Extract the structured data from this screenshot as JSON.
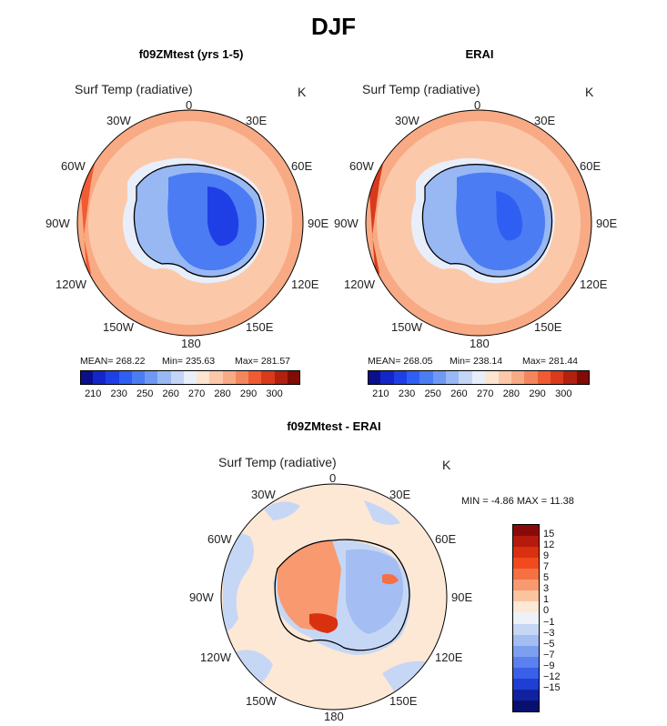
{
  "figure": {
    "title": "DJF"
  },
  "panels": [
    {
      "title": "f09ZMtest (yrs 1-5)",
      "variable": "Surf Temp (radiative)",
      "units": "K",
      "stats": {
        "mean": "MEAN= 268.22",
        "min": "Min= 235.63",
        "max": "Max= 281.57"
      }
    },
    {
      "title": "ERAI",
      "variable": "Surf Temp (radiative)",
      "units": "K",
      "stats": {
        "mean": "MEAN= 268.05",
        "min": "Min= 238.14",
        "max": "Max= 281.44"
      }
    },
    {
      "title": "f09ZMtest - ERAI",
      "variable": "Surf Temp (radiative)",
      "units": "K",
      "stats": {
        "minmax": "MIN =    -4.86 MAX =   11.38"
      }
    }
  ],
  "longitude_labels": [
    "0",
    "30E",
    "60E",
    "90E",
    "120E",
    "150E",
    "180",
    "150W",
    "120W",
    "90W",
    "60W",
    "30W"
  ],
  "colorbar_abs": {
    "ticks": [
      "210",
      "230",
      "250",
      "260",
      "270",
      "280",
      "290",
      "300"
    ],
    "colors": [
      "#0a0f8c",
      "#1426c8",
      "#1f3fe6",
      "#2f5ff2",
      "#4b7cf3",
      "#6f98f3",
      "#98b8f3",
      "#c3d6f6",
      "#e9eefb",
      "#fde4cf",
      "#fbc9a9",
      "#f8aa84",
      "#f4865d",
      "#ef5b33",
      "#d93a1c",
      "#b0210f",
      "#7f0c05"
    ]
  },
  "colorbar_diff": {
    "ticks": [
      "15",
      "12",
      "9",
      "7",
      "5",
      "3",
      "1",
      "0",
      "−1",
      "−3",
      "−5",
      "−7",
      "−9",
      "−12",
      "−15"
    ],
    "colors": [
      "#8a0a0a",
      "#b51a0d",
      "#d9300f",
      "#f04a1e",
      "#f57042",
      "#f8996f",
      "#fbc4a0",
      "#fde8d6",
      "#eef1f8",
      "#c6d7f5",
      "#a4bdf2",
      "#7d9ff0",
      "#5b80ef",
      "#3a5fe8",
      "#1f3ed4",
      "#10229f",
      "#080f6e"
    ]
  },
  "chart_data": [
    {
      "type": "heatmap",
      "projection": "south polar stereographic",
      "title": "f09ZMtest (yrs 1-5)",
      "variable": "Surf Temp (radiative)",
      "units": "K",
      "season": "DJF",
      "mean": 268.22,
      "min": 235.63,
      "max": 281.57,
      "contour_levels": [
        210,
        230,
        250,
        260,
        270,
        280,
        290,
        300
      ]
    },
    {
      "type": "heatmap",
      "projection": "south polar stereographic",
      "title": "ERAI",
      "variable": "Surf Temp (radiative)",
      "units": "K",
      "season": "DJF",
      "mean": 268.05,
      "min": 238.14,
      "max": 281.44,
      "contour_levels": [
        210,
        230,
        250,
        260,
        270,
        280,
        290,
        300
      ]
    },
    {
      "type": "heatmap",
      "projection": "south polar stereographic",
      "title": "f09ZMtest - ERAI",
      "variable": "Surf Temp (radiative)",
      "units": "K",
      "season": "DJF",
      "min": -4.86,
      "max": 11.38,
      "contour_levels": [
        -15,
        -12,
        -9,
        -7,
        -5,
        -3,
        -1,
        0,
        1,
        3,
        5,
        7,
        9,
        12,
        15
      ]
    }
  ]
}
